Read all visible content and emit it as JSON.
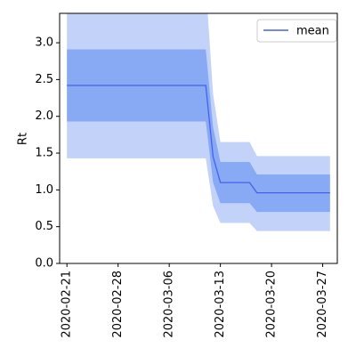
{
  "chart_data": {
    "type": "area",
    "title": "",
    "xlabel": "",
    "ylabel": "Rt",
    "xlim": [
      "2020-02-20",
      "2020-03-29"
    ],
    "ylim": [
      0,
      3.4
    ],
    "x_ticks": [
      "2020-02-21",
      "2020-02-28",
      "2020-03-06",
      "2020-03-13",
      "2020-03-20",
      "2020-03-27"
    ],
    "y_ticks": [
      0.0,
      0.5,
      1.0,
      1.5,
      2.0,
      2.5,
      3.0
    ],
    "y_tick_labels": [
      "0.0",
      "0.5",
      "1.0",
      "1.5",
      "2.0",
      "2.5",
      "3.0"
    ],
    "grid": false,
    "legend_position": "top-right",
    "legend": [
      "mean"
    ],
    "x": [
      "2020-02-21",
      "2020-03-11",
      "2020-03-12",
      "2020-03-13",
      "2020-03-17",
      "2020-03-18",
      "2020-03-28"
    ],
    "series": [
      {
        "name": "mean",
        "values": [
          2.42,
          2.42,
          1.45,
          1.1,
          1.1,
          0.96,
          0.96
        ]
      }
    ],
    "bands": [
      {
        "lower": [
          1.43,
          1.43,
          0.78,
          0.55,
          0.55,
          0.44,
          0.44
        ],
        "upper": [
          3.8,
          3.8,
          2.3,
          1.65,
          1.65,
          1.46,
          1.46
        ]
      },
      {
        "lower": [
          1.93,
          1.93,
          1.1,
          0.82,
          0.82,
          0.7,
          0.7
        ],
        "upper": [
          2.91,
          2.91,
          1.85,
          1.38,
          1.38,
          1.21,
          1.21
        ]
      }
    ],
    "colors": {
      "mean_line": "#4361ee",
      "outer_band": "#c2d2f8",
      "inner_band": "#88a9f4",
      "axes": "#000000",
      "legend_border": "#cccccc"
    }
  }
}
